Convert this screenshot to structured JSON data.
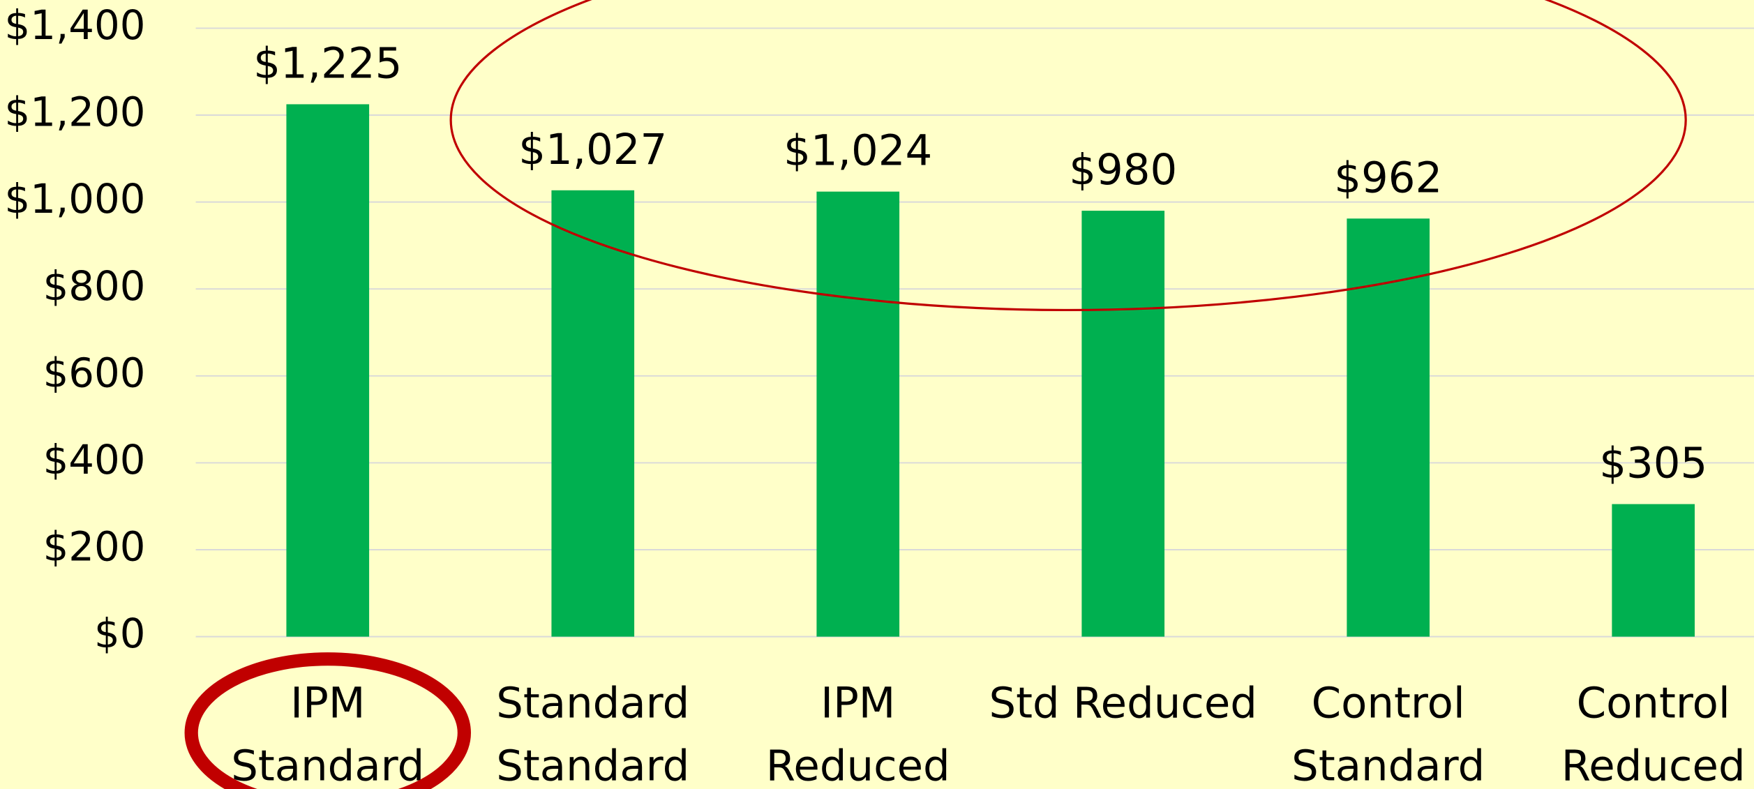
{
  "chart_data": {
    "type": "bar",
    "categories": [
      [
        "IPM",
        "Standard"
      ],
      [
        "Standard",
        "Standard"
      ],
      [
        "IPM",
        "Reduced"
      ],
      [
        "Std Reduced"
      ],
      [
        "Control",
        "Standard"
      ],
      [
        "Control",
        "Reduced"
      ]
    ],
    "values": [
      1225,
      1027,
      1024,
      980,
      962,
      305
    ],
    "value_labels": [
      "$1,225",
      "$1,027",
      "$1,024",
      "$980",
      "$962",
      "$305"
    ],
    "color": "#00b050",
    "ylim": [
      0,
      1400
    ],
    "yticks": [
      {
        "value": 0,
        "label": "$0"
      },
      {
        "value": 200,
        "label": "$200"
      },
      {
        "value": 400,
        "label": "$400"
      },
      {
        "value": 600,
        "label": "$600"
      },
      {
        "value": 800,
        "label": "$800"
      },
      {
        "value": 1000,
        "label": "$1,000"
      },
      {
        "value": 1200,
        "label": "$1,200"
      },
      {
        "value": 1400,
        "label": "$1,400"
      }
    ],
    "grid": true
  }
}
